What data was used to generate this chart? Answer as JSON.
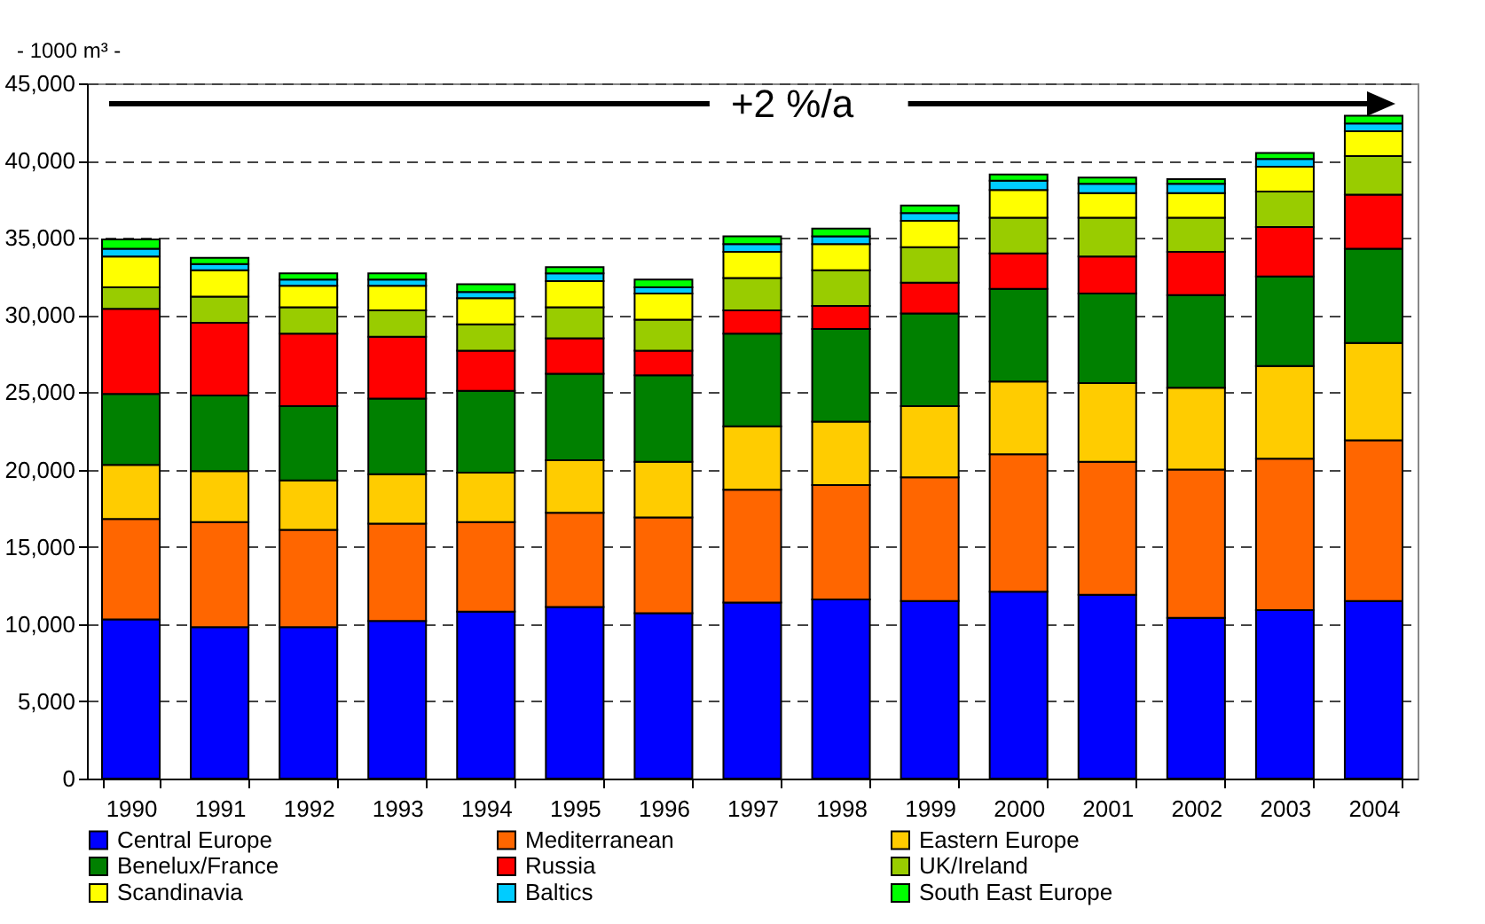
{
  "chart_data": {
    "type": "bar",
    "stacked": true,
    "ylabel": "- 1000 m³ -",
    "annotations": [
      "+2 %/a"
    ],
    "categories": [
      "1990",
      "1991",
      "1992",
      "1993",
      "1994",
      "1995",
      "1996",
      "1997",
      "1998",
      "1999",
      "2000",
      "2001",
      "2002",
      "2003",
      "2004"
    ],
    "series": [
      {
        "name": "Central Europe",
        "color": "#0000ff",
        "values": [
          10300,
          9800,
          9800,
          10200,
          10800,
          11100,
          10700,
          11400,
          11600,
          11500,
          12100,
          11900,
          10400,
          10900,
          11500
        ]
      },
      {
        "name": "Mediterranean",
        "color": "#ff6600",
        "values": [
          6500,
          6800,
          6300,
          6300,
          5800,
          6100,
          6200,
          7300,
          7400,
          8000,
          8900,
          8600,
          9600,
          9800,
          10400
        ]
      },
      {
        "name": "Eastern Europe",
        "color": "#ffcc00",
        "values": [
          3500,
          3300,
          3200,
          3200,
          3200,
          3400,
          3600,
          4100,
          4100,
          4600,
          4700,
          5100,
          5300,
          6000,
          6300
        ]
      },
      {
        "name": "Benelux/France",
        "color": "#008000",
        "values": [
          4600,
          4900,
          4800,
          4900,
          5300,
          5600,
          5600,
          6000,
          6000,
          6000,
          6000,
          5800,
          6000,
          5800,
          6100
        ]
      },
      {
        "name": "Russia",
        "color": "#ff0000",
        "values": [
          5500,
          4700,
          4700,
          4000,
          2600,
          2300,
          1600,
          1500,
          1500,
          2000,
          2300,
          2400,
          2800,
          3200,
          3500
        ]
      },
      {
        "name": "UK/Ireland",
        "color": "#99cc00",
        "values": [
          1400,
          1700,
          1700,
          1700,
          1700,
          2000,
          2000,
          2100,
          2300,
          2300,
          2300,
          2500,
          2200,
          2300,
          2500
        ]
      },
      {
        "name": "Scandinavia",
        "color": "#ffff00",
        "values": [
          2000,
          1700,
          1400,
          1600,
          1700,
          1700,
          1700,
          1700,
          1700,
          1700,
          1800,
          1600,
          1600,
          1600,
          1600
        ]
      },
      {
        "name": "Baltics",
        "color": "#00ccff",
        "values": [
          500,
          400,
          400,
          400,
          400,
          500,
          400,
          500,
          500,
          500,
          600,
          600,
          600,
          500,
          500
        ]
      },
      {
        "name": "South East Europe",
        "color": "#00ff00",
        "values": [
          600,
          400,
          400,
          400,
          500,
          400,
          500,
          500,
          500,
          500,
          400,
          400,
          300,
          400,
          500
        ]
      }
    ],
    "ylim": [
      0,
      45000
    ],
    "yticks": [
      {
        "value": 0,
        "label": "0"
      },
      {
        "value": 5000,
        "label": "5,000"
      },
      {
        "value": 10000,
        "label": "10,000"
      },
      {
        "value": 15000,
        "label": "15,000"
      },
      {
        "value": 20000,
        "label": "20,000"
      },
      {
        "value": 25000,
        "label": "25,000"
      },
      {
        "value": 30000,
        "label": "30,000"
      },
      {
        "value": 35000,
        "label": "35,000"
      },
      {
        "value": 40000,
        "label": "40,000"
      },
      {
        "value": 45000,
        "label": "45,000"
      }
    ],
    "grid": "y",
    "legend": "bottom"
  }
}
